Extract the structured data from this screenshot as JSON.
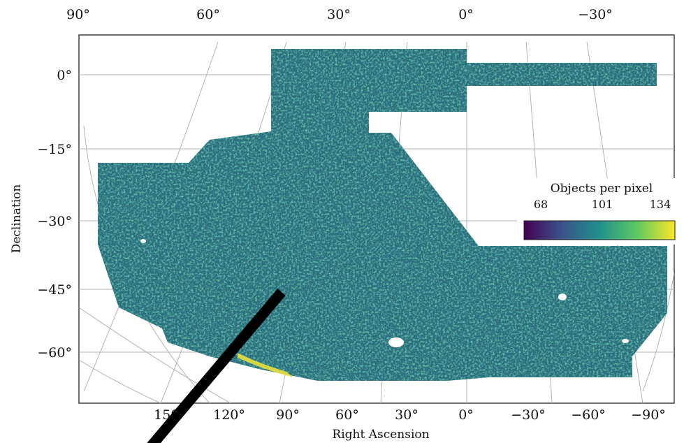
{
  "chart_data": {
    "type": "heatmap",
    "projection": "McBryde-Thomas flat-polar quartic (sky map)",
    "xlabel": "Right Ascension",
    "ylabel": "Declination",
    "x_ticks_bottom": [
      "150°",
      "120°",
      "90°",
      "60°",
      "30°",
      "0°",
      "−30°",
      "−60°",
      "−90°"
    ],
    "x_ticks_top": [
      "90°",
      "60°",
      "30°",
      "0°",
      "−30°"
    ],
    "y_ticks": [
      "0°",
      "−15°",
      "−30°",
      "−45°",
      "−60°"
    ],
    "grid": true,
    "colorbar": {
      "label": "Objects per pixel",
      "ticks": [
        "68",
        "101",
        "134"
      ],
      "colormap": "viridis",
      "placement": "right"
    },
    "colors": {
      "low": "#3b1a54",
      "mid": "#2f7d8c",
      "high": "#f0e63a",
      "grid": "#a9a9a9"
    }
  }
}
